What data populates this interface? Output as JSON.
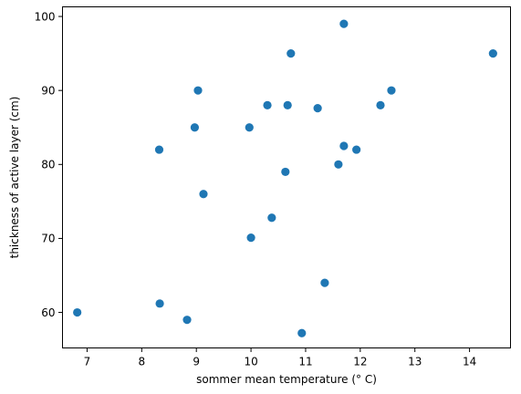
{
  "chart_data": {
    "type": "scatter",
    "title": "",
    "xlabel": "sommer mean temperature (° C)",
    "ylabel": "thickness of active layer (cm)",
    "xlim": [
      6.55,
      14.75
    ],
    "ylim": [
      55.2,
      101.3
    ],
    "xticks": [
      7,
      8,
      9,
      10,
      11,
      12,
      13,
      14
    ],
    "yticks": [
      60,
      70,
      80,
      90,
      100
    ],
    "grid": false,
    "legend": "none",
    "marker_color": "#1f77b4",
    "x": [
      6.82,
      8.32,
      8.33,
      8.83,
      8.97,
      9.03,
      9.13,
      9.97,
      10.0,
      10.3,
      10.38,
      10.63,
      10.67,
      10.73,
      10.93,
      11.22,
      11.35,
      11.6,
      11.7,
      11.7,
      11.93,
      12.37,
      12.57,
      14.43
    ],
    "y": [
      60,
      82,
      61.2,
      59,
      85,
      90,
      76,
      85,
      70.1,
      88,
      72.8,
      79,
      88,
      95,
      57.2,
      87.6,
      64,
      80,
      99,
      82.5,
      82,
      88,
      90,
      95
    ]
  }
}
